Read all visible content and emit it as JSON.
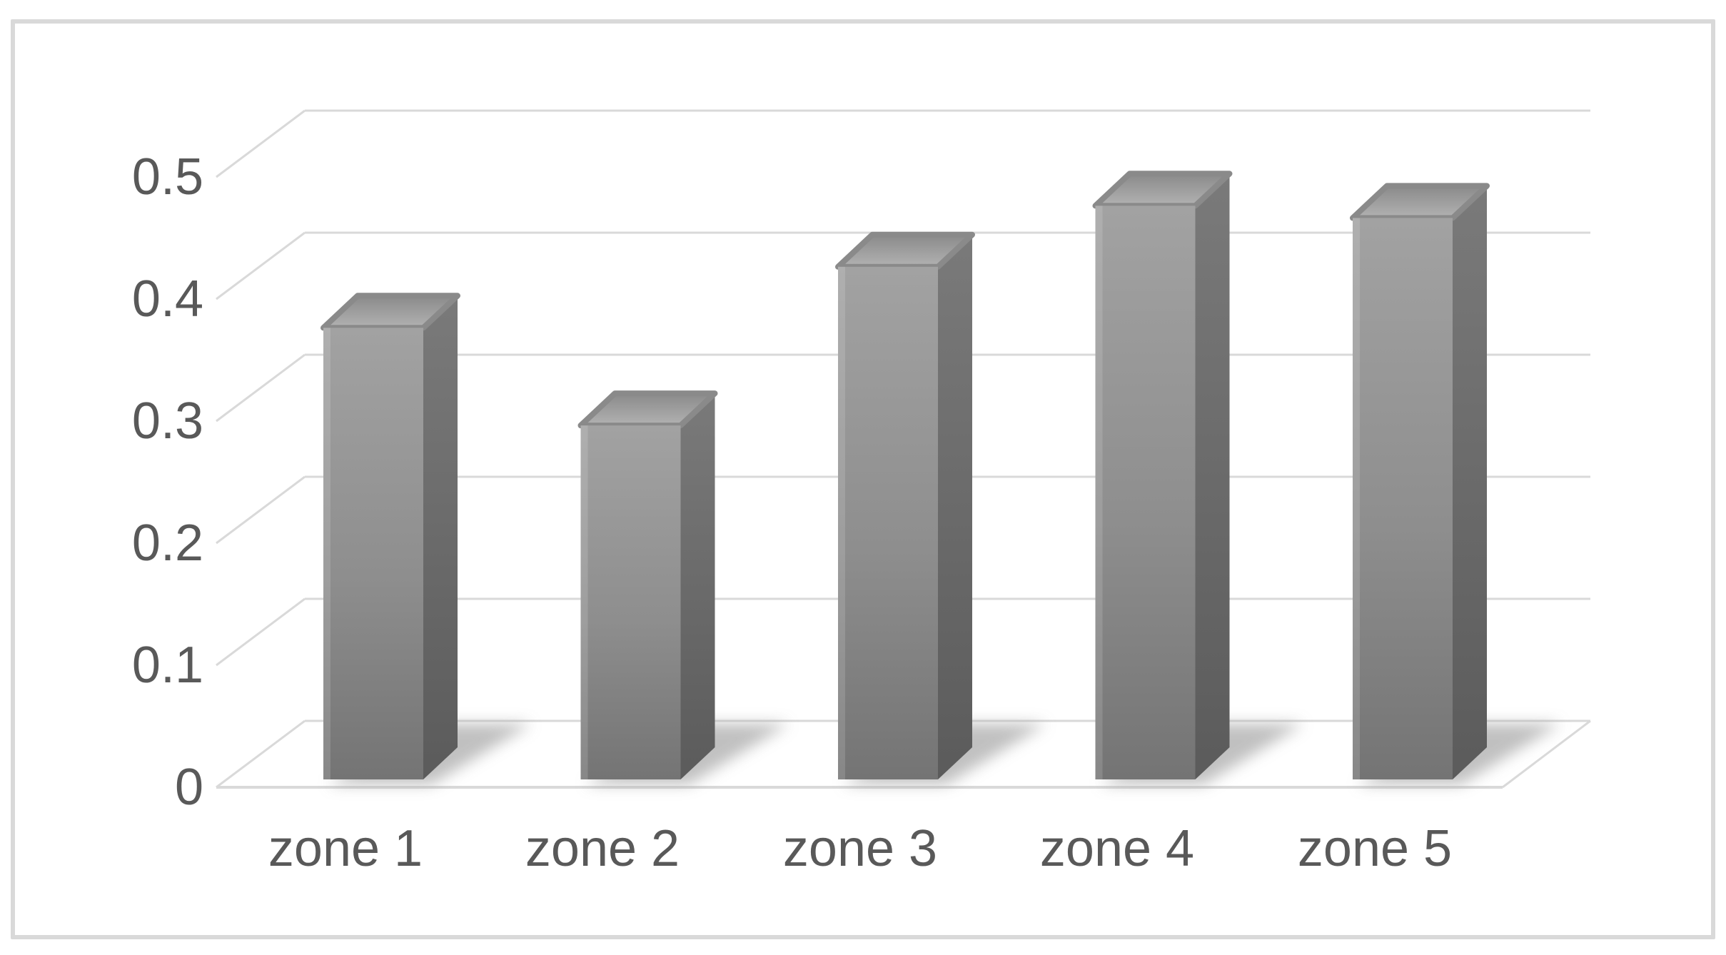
{
  "chart_data": {
    "type": "bar",
    "style": "3d-column",
    "title": "",
    "xlabel": "",
    "ylabel": "",
    "categories": [
      "zone 1",
      "zone 2",
      "zone 3",
      "zone 4",
      "zone 5"
    ],
    "values": [
      0.37,
      0.29,
      0.42,
      0.47,
      0.46
    ],
    "series": [
      {
        "name": "",
        "values": [
          0.37,
          0.29,
          0.42,
          0.47,
          0.46
        ]
      }
    ],
    "ylim": [
      0,
      0.5
    ],
    "yticks": [
      0,
      0.1,
      0.2,
      0.3,
      0.4,
      0.5
    ],
    "ytick_labels": [
      "0",
      "0.1",
      "0.2",
      "0.3",
      "0.4",
      "0.5"
    ],
    "grid": true,
    "legend": false,
    "colors": {
      "background": "#ffffff",
      "frame_border": "#d9d9d9",
      "gridline": "#d9d9d9",
      "axis_text": "#595959",
      "bar_front_top": "#a2a2a2",
      "bar_front_mid": "#8e8e8e",
      "bar_front_bottom": "#747474",
      "bar_side_top": "#7a7a7a",
      "bar_side_bottom": "#5b5b5b",
      "bar_top_back": "#8a8a8a",
      "bar_top_front": "#b2b2b2",
      "shadow": "#a6a6a6"
    }
  }
}
